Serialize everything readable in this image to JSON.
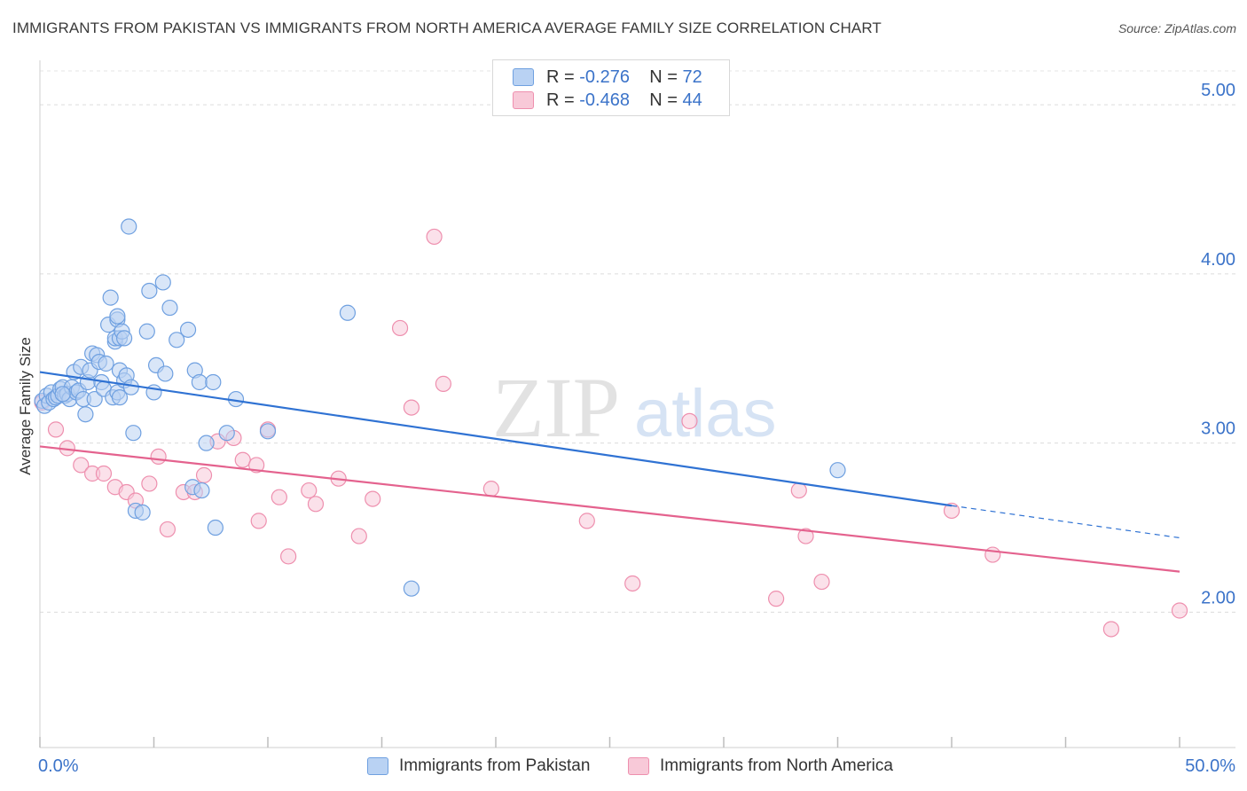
{
  "header": {
    "title": "IMMIGRANTS FROM PAKISTAN VS IMMIGRANTS FROM NORTH AMERICA AVERAGE FAMILY SIZE CORRELATION CHART",
    "source": "Source: ZipAtlas.com"
  },
  "legend": {
    "rows": [
      {
        "r_label": "R =",
        "r_value": "-0.276",
        "n_label": "N =",
        "n_value": "72"
      },
      {
        "r_label": "R =",
        "r_value": "-0.468",
        "n_label": "N =",
        "n_value": "44"
      }
    ]
  },
  "watermark": {
    "zip": "ZIP",
    "atlas": "atlas"
  },
  "colors": {
    "pakistan": "#6fa0e0",
    "pakistan_fill": "#b9d2f3",
    "pakistan_line": "#2f72d3",
    "north_america": "#ee8fae",
    "north_america_fill": "#f8c9d8",
    "north_america_line": "#e4628e",
    "axis_text": "#3b73c9"
  },
  "chart_data": {
    "type": "scatter",
    "xlabel": "",
    "ylabel": "Average Family Size",
    "xlim": [
      0,
      50
    ],
    "ylim": [
      1.2,
      5.2
    ],
    "x_tick_labels": [
      "0.0%",
      "50.0%"
    ],
    "y_ticks": [
      2.0,
      3.0,
      4.0,
      5.0
    ],
    "y_tick_labels": [
      "2.00",
      "3.00",
      "4.00",
      "5.00"
    ],
    "grid": "horizontal dashed",
    "legend_position": "top-center",
    "series": [
      {
        "name": "Immigrants from Pakistan",
        "color": "#6fa0e0",
        "trend": {
          "x0": 0,
          "y0": 3.42,
          "x1": 40,
          "y1": 2.63,
          "dashed_to_x": 50,
          "dashed_to_y": 2.44
        },
        "points": [
          [
            0.1,
            3.25
          ],
          [
            0.2,
            3.22
          ],
          [
            0.3,
            3.28
          ],
          [
            0.4,
            3.24
          ],
          [
            0.5,
            3.3
          ],
          [
            0.6,
            3.26
          ],
          [
            0.7,
            3.27
          ],
          [
            0.8,
            3.28
          ],
          [
            0.9,
            3.32
          ],
          [
            1.0,
            3.33
          ],
          [
            1.1,
            3.28
          ],
          [
            1.2,
            3.29
          ],
          [
            1.3,
            3.26
          ],
          [
            1.4,
            3.33
          ],
          [
            1.5,
            3.42
          ],
          [
            1.6,
            3.3
          ],
          [
            1.7,
            3.31
          ],
          [
            1.8,
            3.45
          ],
          [
            1.9,
            3.26
          ],
          [
            2.0,
            3.17
          ],
          [
            2.1,
            3.36
          ],
          [
            2.2,
            3.43
          ],
          [
            2.3,
            3.53
          ],
          [
            2.4,
            3.26
          ],
          [
            2.5,
            3.52
          ],
          [
            2.6,
            3.48
          ],
          [
            2.7,
            3.36
          ],
          [
            2.8,
            3.32
          ],
          [
            2.9,
            3.47
          ],
          [
            3.0,
            3.7
          ],
          [
            3.1,
            3.86
          ],
          [
            3.2,
            3.27
          ],
          [
            3.3,
            3.6
          ],
          [
            3.4,
            3.3
          ],
          [
            3.5,
            3.27
          ],
          [
            3.5,
            3.43
          ],
          [
            3.7,
            3.37
          ],
          [
            3.3,
            3.62
          ],
          [
            3.4,
            3.73
          ],
          [
            3.4,
            3.75
          ],
          [
            3.5,
            3.62
          ],
          [
            3.6,
            3.66
          ],
          [
            3.7,
            3.62
          ],
          [
            3.8,
            3.4
          ],
          [
            3.9,
            4.28
          ],
          [
            4.0,
            3.33
          ],
          [
            4.1,
            3.06
          ],
          [
            4.2,
            2.6
          ],
          [
            4.5,
            2.59
          ],
          [
            4.7,
            3.66
          ],
          [
            4.8,
            3.9
          ],
          [
            5.0,
            3.3
          ],
          [
            5.1,
            3.46
          ],
          [
            5.4,
            3.95
          ],
          [
            5.5,
            3.41
          ],
          [
            5.7,
            3.8
          ],
          [
            6.0,
            3.61
          ],
          [
            6.5,
            3.67
          ],
          [
            6.7,
            2.74
          ],
          [
            6.8,
            3.43
          ],
          [
            7.0,
            3.36
          ],
          [
            7.1,
            2.72
          ],
          [
            7.3,
            3.0
          ],
          [
            7.6,
            3.36
          ],
          [
            7.7,
            2.5
          ],
          [
            8.2,
            3.06
          ],
          [
            8.6,
            3.26
          ],
          [
            10.0,
            3.07
          ],
          [
            13.5,
            3.77
          ],
          [
            16.3,
            2.14
          ],
          [
            35.0,
            2.84
          ],
          [
            1.0,
            3.29
          ]
        ]
      },
      {
        "name": "Immigrants from North America",
        "color": "#ee8fae",
        "trend": {
          "x0": 0,
          "y0": 2.98,
          "x1": 50,
          "y1": 2.24
        },
        "points": [
          [
            0.1,
            3.24
          ],
          [
            0.7,
            3.08
          ],
          [
            1.2,
            2.97
          ],
          [
            1.8,
            2.87
          ],
          [
            2.3,
            2.82
          ],
          [
            2.8,
            2.82
          ],
          [
            3.3,
            2.74
          ],
          [
            3.8,
            2.71
          ],
          [
            4.2,
            2.66
          ],
          [
            4.8,
            2.76
          ],
          [
            5.2,
            2.92
          ],
          [
            5.6,
            2.49
          ],
          [
            6.3,
            2.71
          ],
          [
            6.8,
            2.71
          ],
          [
            7.2,
            2.81
          ],
          [
            7.8,
            3.01
          ],
          [
            8.5,
            3.03
          ],
          [
            8.9,
            2.9
          ],
          [
            9.5,
            2.87
          ],
          [
            9.6,
            2.54
          ],
          [
            10.0,
            3.08
          ],
          [
            10.5,
            2.68
          ],
          [
            10.9,
            2.33
          ],
          [
            11.8,
            2.72
          ],
          [
            12.1,
            2.64
          ],
          [
            13.1,
            2.79
          ],
          [
            14.0,
            2.45
          ],
          [
            14.6,
            2.67
          ],
          [
            15.8,
            3.68
          ],
          [
            16.3,
            3.21
          ],
          [
            17.3,
            4.22
          ],
          [
            17.7,
            3.35
          ],
          [
            19.8,
            2.73
          ],
          [
            24.0,
            2.54
          ],
          [
            26.0,
            2.17
          ],
          [
            28.5,
            3.13
          ],
          [
            32.3,
            2.08
          ],
          [
            33.3,
            2.72
          ],
          [
            33.6,
            2.45
          ],
          [
            34.3,
            2.18
          ],
          [
            40.0,
            2.6
          ],
          [
            41.8,
            2.34
          ],
          [
            47.0,
            1.9
          ],
          [
            50.0,
            2.01
          ]
        ]
      }
    ]
  },
  "bottom_legend": {
    "pakistan_label": "Immigrants from Pakistan",
    "north_america_label": "Immigrants from North America"
  }
}
